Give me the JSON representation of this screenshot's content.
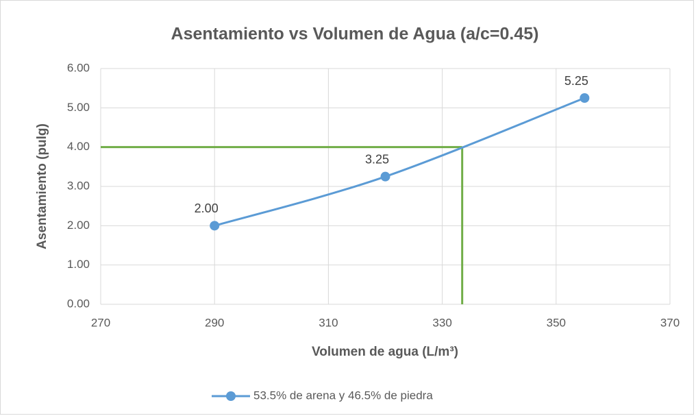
{
  "chart_data": {
    "type": "line",
    "title": "Asentamiento vs  Volumen de Agua (a/c=0.45)",
    "x_label": "Volumen de agua (L/m³)",
    "y_label": "Asentamiento (pulg)",
    "x": [
      290,
      320,
      355
    ],
    "series": [
      {
        "name": "53.5% de arena y 46.5% de piedra",
        "color": "#5b9bd5",
        "values": [
          2,
          3.25,
          5.25
        ],
        "value_labels": [
          "2.00",
          "3.25",
          "5.25"
        ]
      }
    ],
    "xlim": [
      270,
      370
    ],
    "xticks": [
      270,
      290,
      310,
      330,
      350,
      370
    ],
    "ylim": [
      0,
      6
    ],
    "yticks": [
      {
        "value": 0,
        "label": "0.00"
      },
      {
        "value": 1,
        "label": "1.00"
      },
      {
        "value": 2,
        "label": "2.00"
      },
      {
        "value": 3,
        "label": "3.00"
      },
      {
        "value": 4,
        "label": "4.00"
      },
      {
        "value": 5,
        "label": "5.00"
      },
      {
        "value": 6,
        "label": "6.00"
      }
    ],
    "grid": true,
    "smooth": true,
    "legend": "bottom",
    "reference_lines": {
      "color": "#70ad47",
      "y": 4,
      "x": 333.5
    }
  }
}
